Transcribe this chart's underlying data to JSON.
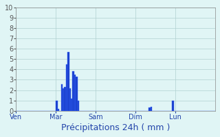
{
  "title": "Précipitations 24h ( mm )",
  "background_color": "#e0f5f5",
  "bar_color": "#1a3fcc",
  "bar_edge_color": "#3366ff",
  "ylim": [
    0,
    10
  ],
  "yticks": [
    0,
    1,
    2,
    3,
    4,
    5,
    6,
    7,
    8,
    9,
    10
  ],
  "day_labels": [
    "Ven",
    "Mar",
    "Sam",
    "Dim",
    "Lun"
  ],
  "day_positions": [
    0,
    24,
    48,
    72,
    96
  ],
  "num_bars": 120,
  "bar_values": [
    0,
    0,
    0,
    0,
    0,
    0,
    0,
    0,
    0,
    0,
    0,
    0,
    0,
    0,
    0,
    0,
    0,
    0,
    0,
    0,
    0,
    0,
    0,
    0,
    1.0,
    0.2,
    0,
    2.6,
    2.2,
    2.3,
    4.5,
    5.7,
    2.2,
    1.2,
    3.8,
    3.5,
    3.3,
    1.0,
    0,
    0,
    0,
    0,
    0,
    0,
    0,
    0,
    0,
    0,
    0,
    0,
    0,
    0,
    0,
    0,
    0,
    0,
    0,
    0,
    0,
    0,
    0,
    0,
    0,
    0,
    0,
    0,
    0,
    0,
    0,
    0,
    0,
    0,
    0,
    0,
    0,
    0,
    0,
    0,
    0,
    0,
    0.3,
    0.4,
    0,
    0,
    0,
    0,
    0,
    0,
    0,
    0,
    0,
    0,
    0,
    0,
    1.0,
    0,
    0,
    0,
    0,
    0,
    0,
    0,
    0,
    0,
    0,
    0,
    0,
    0,
    0,
    0,
    0,
    0,
    0,
    0,
    0,
    0,
    0,
    0,
    0,
    0
  ],
  "xlabel_fontsize": 9,
  "tick_fontsize": 7,
  "grid_color": "#b0d0d0",
  "spine_color": "#888888"
}
